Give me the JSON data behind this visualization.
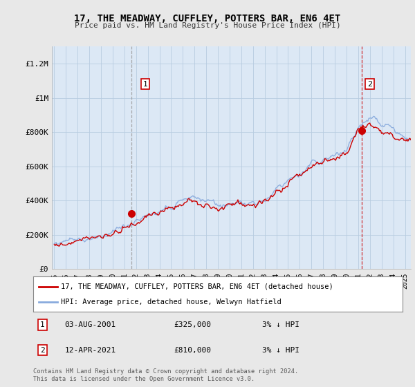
{
  "title": "17, THE MEADWAY, CUFFLEY, POTTERS BAR, EN6 4ET",
  "subtitle": "Price paid vs. HM Land Registry's House Price Index (HPI)",
  "ylabel_ticks": [
    "£0",
    "£200K",
    "£400K",
    "£600K",
    "£800K",
    "£1M",
    "£1.2M"
  ],
  "ytick_values": [
    0,
    200000,
    400000,
    600000,
    800000,
    1000000,
    1200000
  ],
  "ylim": [
    0,
    1300000
  ],
  "legend_line1": "17, THE MEADWAY, CUFFLEY, POTTERS BAR, EN6 4ET (detached house)",
  "legend_line2": "HPI: Average price, detached house, Welwyn Hatfield",
  "marker1_price": 325000,
  "marker1_date_str": "03-AUG-2001",
  "marker1_hpi_diff": "3% ↓ HPI",
  "marker1_x": 2001.58,
  "marker2_price": 810000,
  "marker2_date_str": "12-APR-2021",
  "marker2_hpi_diff": "3% ↓ HPI",
  "marker2_x": 2021.28,
  "footer": "Contains HM Land Registry data © Crown copyright and database right 2024.\nThis data is licensed under the Open Government Licence v3.0.",
  "line_color_price": "#cc0000",
  "line_color_hpi": "#88aadd",
  "background_color": "#e8e8e8",
  "plot_bg_color": "#dce8f5",
  "grid_color": "#b8cce0",
  "vline1_color": "#999999",
  "vline2_color": "#cc0000",
  "xtick_years": [
    1995,
    1996,
    1997,
    1998,
    1999,
    2000,
    2001,
    2002,
    2003,
    2004,
    2005,
    2006,
    2007,
    2008,
    2009,
    2010,
    2011,
    2012,
    2013,
    2014,
    2015,
    2016,
    2017,
    2018,
    2019,
    2020,
    2021,
    2022,
    2023,
    2024,
    2025
  ],
  "xlim_start": 1994.8,
  "xlim_end": 2025.5
}
